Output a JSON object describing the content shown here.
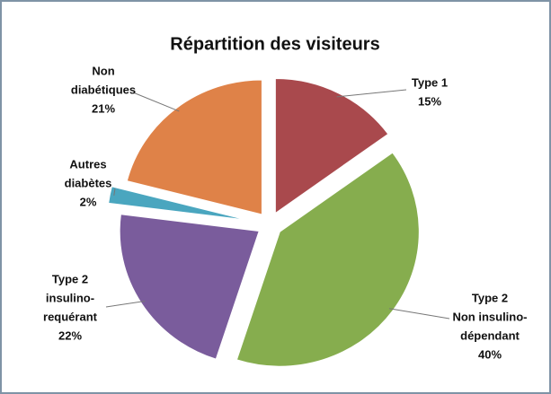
{
  "chart_data": {
    "type": "pie",
    "title": "Répartition des visiteurs",
    "categories": [
      [
        "Type 1"
      ],
      [
        "Type 2",
        "Non insulino-",
        "dépendant"
      ],
      [
        "Type 2",
        "insulino-",
        "requérant"
      ],
      [
        "Autres",
        "diabètes"
      ],
      [
        "Non",
        "diabétiques"
      ]
    ],
    "values": [
      15,
      40,
      22,
      2,
      21
    ],
    "value_labels": [
      "15%",
      "40%",
      "22%",
      "2%",
      "21%"
    ],
    "colors": [
      "#a9494d",
      "#86ad4e",
      "#7a5c9c",
      "#4aa6bf",
      "#df8248"
    ]
  }
}
